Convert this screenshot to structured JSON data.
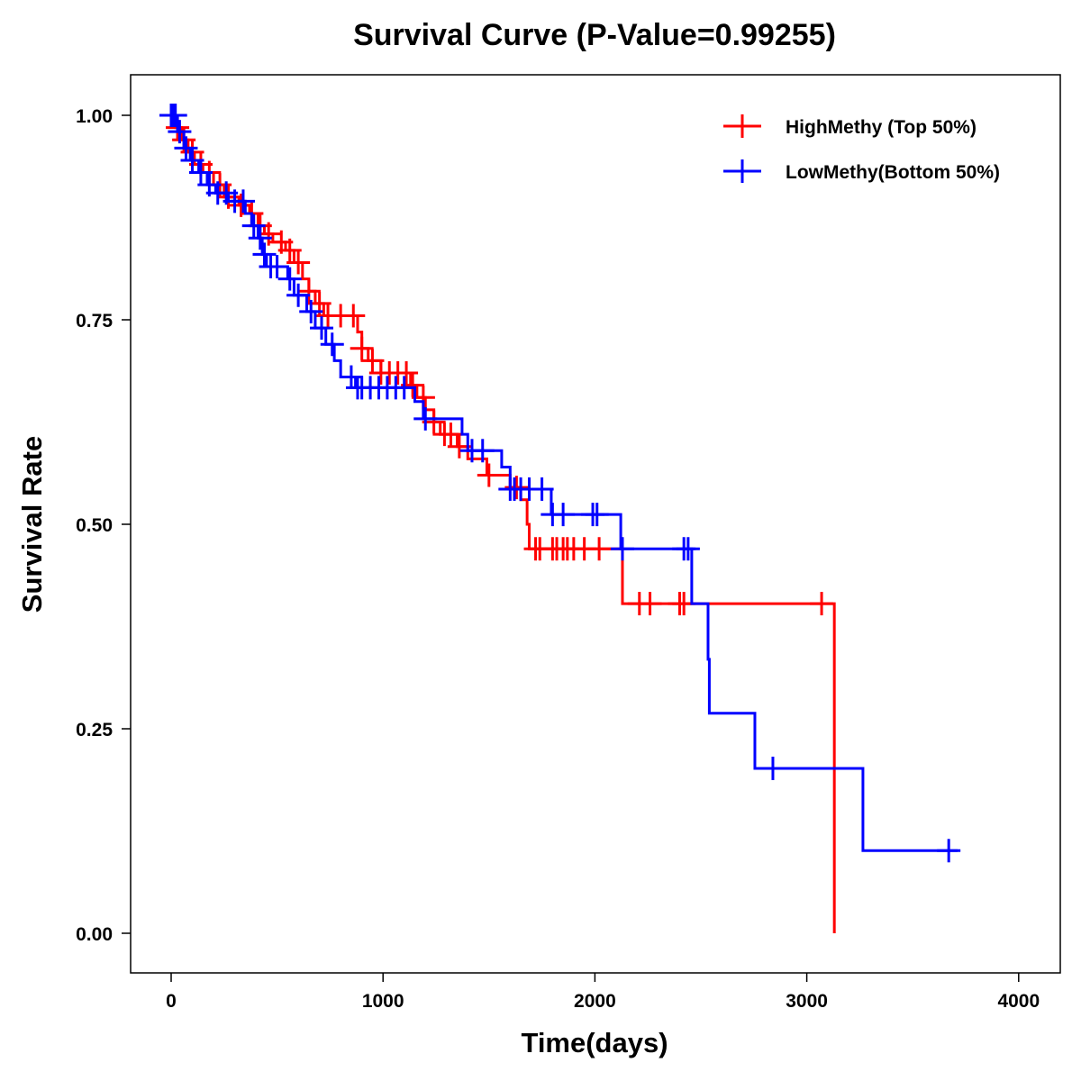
{
  "chart_data": {
    "type": "line",
    "subtype": "kaplan-meier step",
    "title": "Survival Curve (P-Value=0.99255)",
    "xlabel": "Time(days)",
    "ylabel": "Survival Rate",
    "xlim": [
      -190,
      4190
    ],
    "ylim": [
      -0.05,
      1.05
    ],
    "xticks": [
      0,
      1000,
      2000,
      3000,
      4000
    ],
    "xtick_labels": [
      "0",
      "1000",
      "2000",
      "3000",
      "4000"
    ],
    "yticks": [
      0,
      0.25,
      0.5,
      0.75,
      1.0
    ],
    "ytick_labels": [
      "0.00",
      "0.25",
      "0.50",
      "0.75",
      "1.00"
    ],
    "grid": false,
    "legend_position": "top-right",
    "series": [
      {
        "name": "HighMethy (Top 50%)",
        "color": "#FF0000",
        "steps": [
          [
            0,
            1.0
          ],
          [
            20,
            0.985
          ],
          [
            50,
            0.97
          ],
          [
            80,
            0.955
          ],
          [
            110,
            0.94
          ],
          [
            150,
            0.93
          ],
          [
            200,
            0.915
          ],
          [
            250,
            0.9
          ],
          [
            320,
            0.89
          ],
          [
            370,
            0.88
          ],
          [
            410,
            0.865
          ],
          [
            440,
            0.855
          ],
          [
            480,
            0.845
          ],
          [
            540,
            0.835
          ],
          [
            580,
            0.82
          ],
          [
            620,
            0.8
          ],
          [
            650,
            0.785
          ],
          [
            680,
            0.77
          ],
          [
            720,
            0.755
          ],
          [
            880,
            0.735
          ],
          [
            900,
            0.715
          ],
          [
            930,
            0.7
          ],
          [
            990,
            0.685
          ],
          [
            1130,
            0.67
          ],
          [
            1160,
            0.655
          ],
          [
            1200,
            0.64
          ],
          [
            1240,
            0.625
          ],
          [
            1270,
            0.61
          ],
          [
            1350,
            0.595
          ],
          [
            1400,
            0.58
          ],
          [
            1490,
            0.56
          ],
          [
            1600,
            0.545
          ],
          [
            1650,
            0.53
          ],
          [
            1680,
            0.5
          ],
          [
            1690,
            0.47
          ],
          [
            2130,
            0.403
          ],
          [
            3130,
            0.0
          ]
        ],
        "end_time": 3130,
        "censor_times": [
          30,
          60,
          100,
          140,
          180,
          230,
          270,
          330,
          380,
          420,
          460,
          520,
          560,
          600,
          650,
          700,
          740,
          800,
          860,
          900,
          950,
          990,
          1030,
          1070,
          1110,
          1140,
          1190,
          1240,
          1290,
          1320,
          1360,
          1500,
          1630,
          1720,
          1740,
          1800,
          1820,
          1850,
          1870,
          1900,
          1950,
          2020,
          2210,
          2260,
          2400,
          2420,
          3070
        ]
      },
      {
        "name": "LowMethy(Bottom 50%)",
        "color": "#0000FF",
        "steps": [
          [
            0,
            1.0
          ],
          [
            30,
            0.98
          ],
          [
            60,
            0.96
          ],
          [
            90,
            0.945
          ],
          [
            130,
            0.93
          ],
          [
            170,
            0.915
          ],
          [
            210,
            0.905
          ],
          [
            270,
            0.895
          ],
          [
            350,
            0.88
          ],
          [
            380,
            0.865
          ],
          [
            410,
            0.85
          ],
          [
            430,
            0.83
          ],
          [
            450,
            0.815
          ],
          [
            550,
            0.8
          ],
          [
            580,
            0.78
          ],
          [
            640,
            0.76
          ],
          [
            680,
            0.74
          ],
          [
            730,
            0.72
          ],
          [
            770,
            0.7
          ],
          [
            800,
            0.68
          ],
          [
            870,
            0.667
          ],
          [
            1150,
            0.65
          ],
          [
            1190,
            0.629
          ],
          [
            1373,
            0.61
          ],
          [
            1400,
            0.59
          ],
          [
            1560,
            0.57
          ],
          [
            1600,
            0.543
          ],
          [
            1794,
            0.512
          ],
          [
            2122,
            0.47
          ],
          [
            2457,
            0.403
          ],
          [
            2534,
            0.335
          ],
          [
            2540,
            0.269
          ],
          [
            2755,
            0.2016
          ],
          [
            3265,
            0.101
          ]
        ],
        "end_time": 3712,
        "censor_times": [
          0,
          10,
          20,
          40,
          70,
          100,
          140,
          180,
          220,
          260,
          300,
          340,
          390,
          420,
          440,
          470,
          500,
          560,
          600,
          660,
          710,
          760,
          850,
          880,
          900,
          940,
          980,
          1020,
          1060,
          1100,
          1200,
          1420,
          1470,
          1600,
          1620,
          1650,
          1690,
          1750,
          1800,
          1850,
          1990,
          2010,
          2130,
          2420,
          2440,
          2840,
          3670
        ]
      }
    ]
  }
}
